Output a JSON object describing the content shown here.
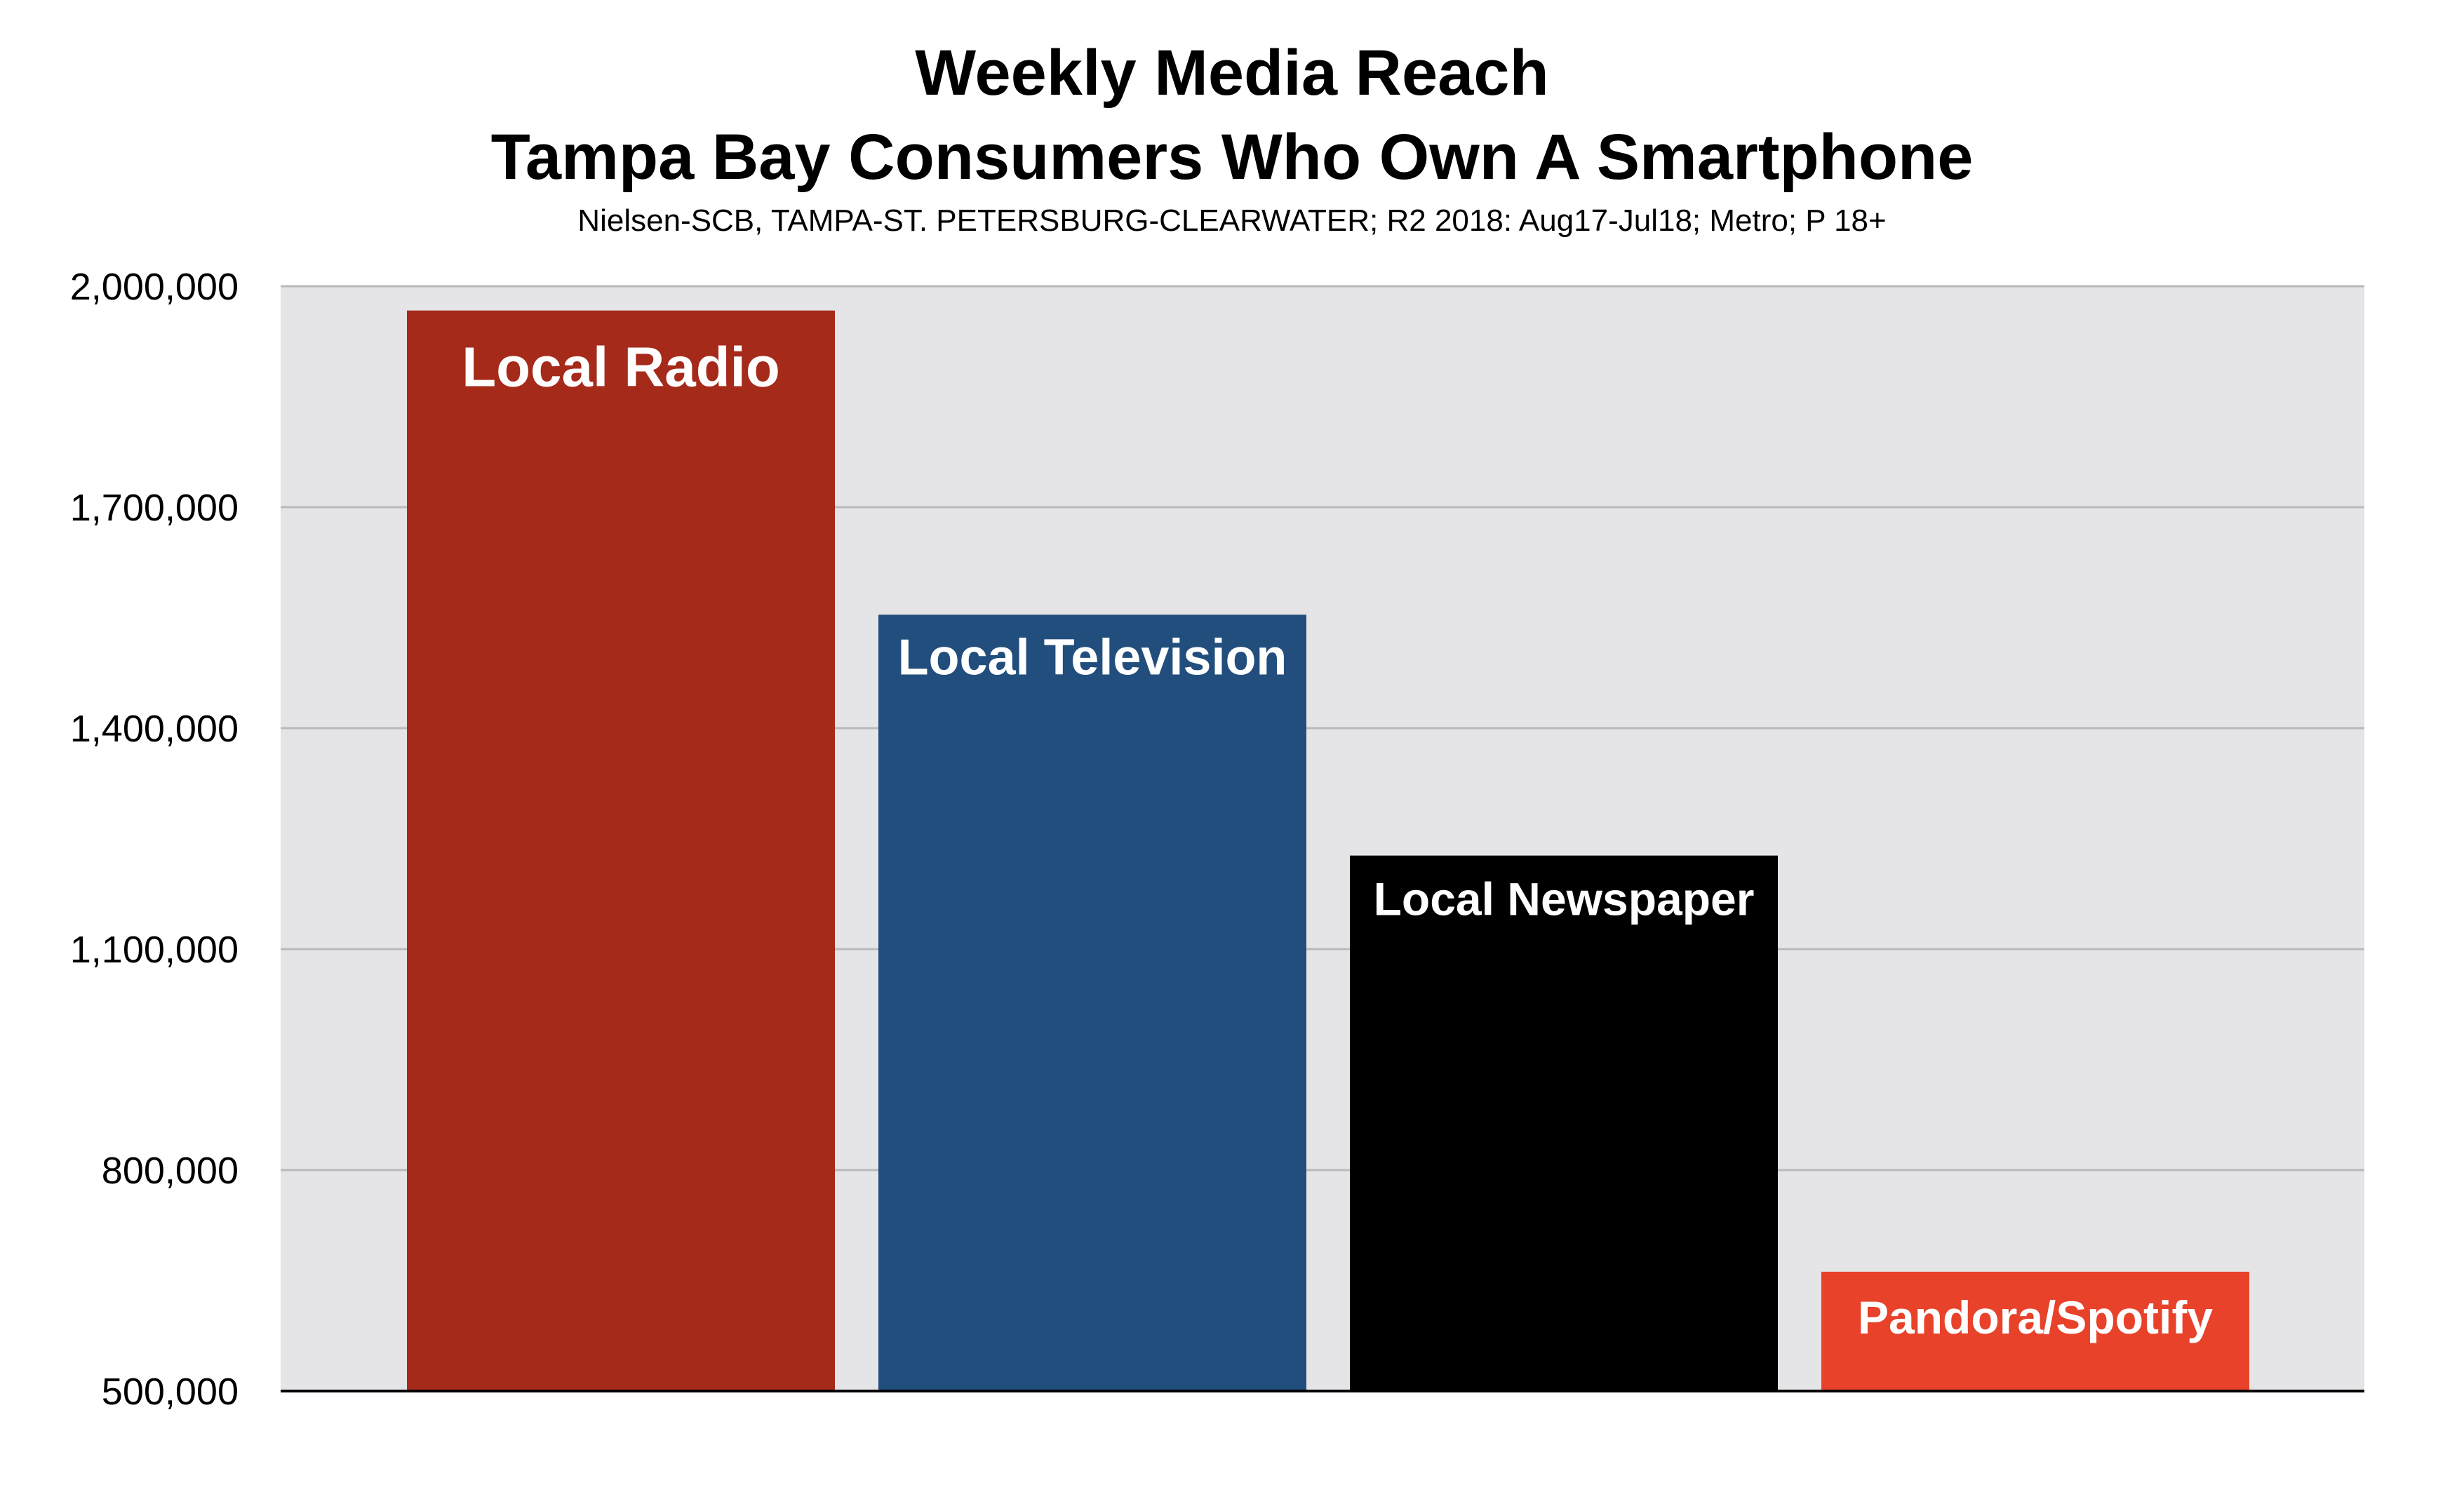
{
  "chart_data": {
    "type": "bar",
    "title_lines": [
      "Weekly Media Reach",
      "Tampa Bay Consumers Who Own A Smartphone"
    ],
    "subtitle": "Nielsen-SCB, TAMPA-ST. PETERSBURG-CLEARWATER; R2 2018: Aug17-Jul18; Metro; P 18+",
    "xlabel": "",
    "ylabel": "",
    "categories": [
      "Local Radio",
      "Local Television",
      "Local Newspaper",
      "Pandora/Spotify"
    ],
    "values": [
      1967000,
      1554000,
      1227000,
      662000
    ],
    "colors": [
      "#a52a1a",
      "#224e7d",
      "#000000",
      "#e8422a"
    ],
    "ylim": [
      500000,
      2000000
    ],
    "yticks": [
      500000,
      800000,
      1100000,
      1400000,
      1700000,
      2000000
    ],
    "ytick_labels": [
      "500,000",
      "800,000",
      "1,100,000",
      "1,400,000",
      "1,700,000",
      "2,000,000"
    ],
    "grid": true,
    "legend": "none",
    "label_placement": "inside-top"
  }
}
